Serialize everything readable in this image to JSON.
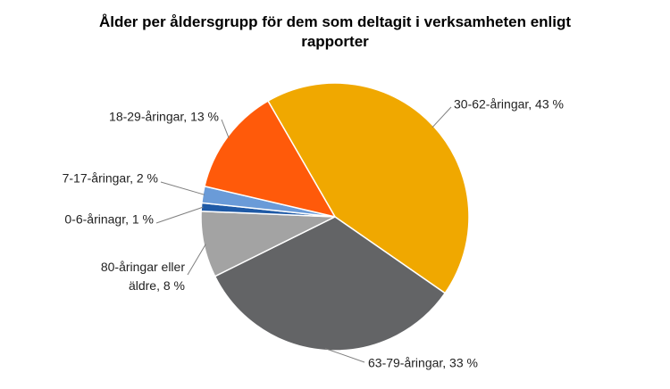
{
  "chart_data": {
    "type": "pie",
    "title": "Ålder per åldersgrupp för dem som deltagit i verksamheten enligt rapporter",
    "values": [
      43,
      33,
      8,
      1,
      2,
      13
    ],
    "value_labels": [
      "30-62-åringar, 43 %",
      "63-79-åringar, 33 %",
      "80-åringar eller äldre, 8 %",
      "0-6-årinagr, 1 %",
      "7-17-åringar, 2 %",
      "18-29-åringar, 13 %"
    ],
    "colors": [
      "#f0a800",
      "#636466",
      "#a3a3a3",
      "#1f5aa6",
      "#6a9bd8",
      "#ff5a0a"
    ]
  }
}
